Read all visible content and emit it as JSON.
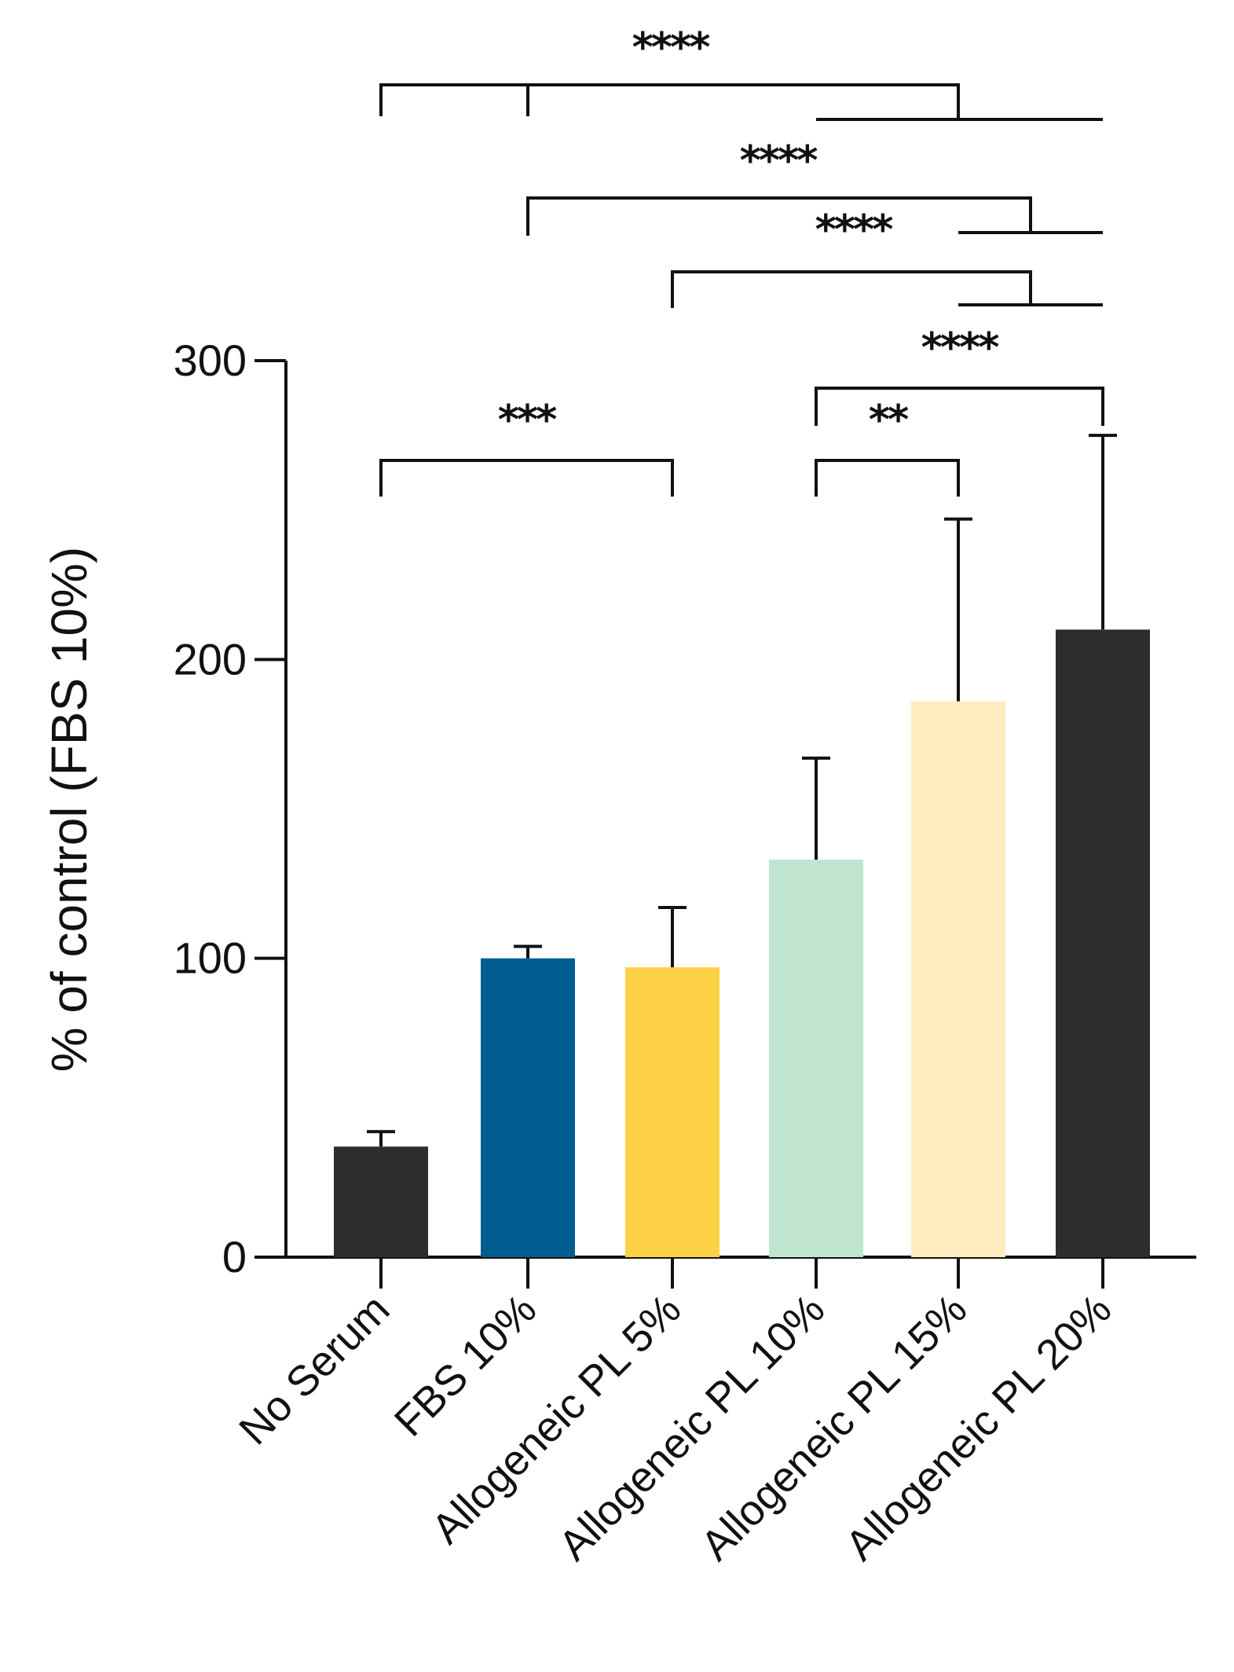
{
  "chart_data": {
    "type": "bar",
    "title": "",
    "xlabel": "",
    "ylabel": "% of control (FBS 10%)",
    "ylim": [
      0,
      300
    ],
    "yticks": [
      0,
      100,
      200,
      300
    ],
    "grid": false,
    "categories": [
      "No Serum",
      "FBS 10%",
      "Allogeneic PL 5%",
      "Allogeneic PL 10%",
      "Allogeneic PL 15%",
      "Allogeneic PL 20%"
    ],
    "values": [
      37,
      100,
      97,
      133,
      186,
      210
    ],
    "errors": [
      5,
      4,
      20,
      34,
      61,
      65
    ],
    "colors": [
      "#2d2d2d",
      "#005d8f",
      "#fdd145",
      "#bfe5d1",
      "#fcecc0",
      "#2d2d2d"
    ],
    "significance": [
      {
        "label": "****",
        "groups_a": [
          0,
          1
        ],
        "groups_b": [
          3,
          5
        ]
      },
      {
        "label": "****",
        "groups_a": [
          1
        ],
        "groups_b": [
          4,
          5
        ]
      },
      {
        "label": "****",
        "groups_a": [
          2
        ],
        "groups_b": [
          4,
          5
        ]
      },
      {
        "label": "****",
        "groups_a": [
          3
        ],
        "groups_b": [
          5
        ]
      },
      {
        "label": "***",
        "groups_a": [
          0
        ],
        "groups_b": [
          2
        ]
      },
      {
        "label": "**",
        "groups_a": [
          3
        ],
        "groups_b": [
          4
        ]
      }
    ]
  }
}
